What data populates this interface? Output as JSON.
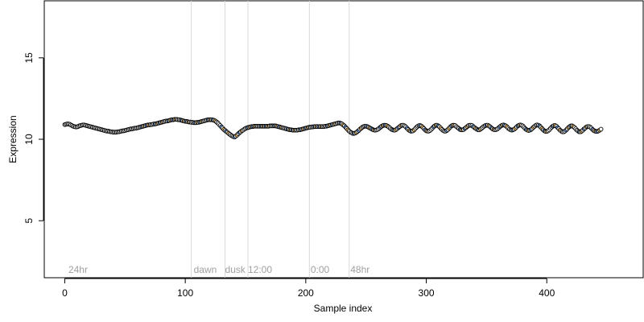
{
  "chart_data": {
    "type": "scatter",
    "title": "",
    "xlabel": "Sample index",
    "ylabel": "Expression",
    "xlim": [
      -17,
      480
    ],
    "ylim": [
      1.5,
      18.5
    ],
    "x_ticks": [
      0,
      100,
      200,
      300,
      400
    ],
    "y_ticks": [
      5,
      10,
      15
    ],
    "grid": false,
    "legend": "none",
    "colors": {
      "point_stroke": "#000000",
      "point_fill_neutral": "#ffffff",
      "point_fill_light": "#ffc866",
      "point_fill_dark": "#6699dd",
      "vline": "#d9d9d9",
      "annotation": "#a0a0a0"
    },
    "vlines": [
      105,
      133,
      152,
      203,
      236
    ],
    "annotations": [
      {
        "x": 3,
        "y": 2,
        "text": "24hr"
      },
      {
        "x": 107,
        "y": 2,
        "text": "dawn"
      },
      {
        "x": 133,
        "y": 2,
        "text": "dusk"
      },
      {
        "x": 152,
        "y": 2,
        "text": "12:00"
      },
      {
        "x": 204,
        "y": 2,
        "text": "0:00"
      },
      {
        "x": 237,
        "y": 2,
        "text": "48hr"
      }
    ],
    "series": [
      {
        "values": [
          10.9,
          10.92,
          10.94,
          10.94,
          10.92,
          10.88,
          10.84,
          10.8,
          10.78,
          10.76,
          10.76,
          10.78,
          10.82,
          10.84,
          10.86,
          10.88,
          10.88,
          10.86,
          10.84,
          10.82,
          10.8,
          10.78,
          10.76,
          10.74,
          10.72,
          10.7,
          10.68,
          10.66,
          10.64,
          10.62,
          10.6,
          10.58,
          10.56,
          10.54,
          10.52,
          10.5,
          10.5,
          10.48,
          10.46,
          10.46,
          10.44,
          10.44,
          10.44,
          10.44,
          10.46,
          10.46,
          10.48,
          10.5,
          10.52,
          10.52,
          10.54,
          10.56,
          10.58,
          10.6,
          10.62,
          10.64,
          10.64,
          10.66,
          10.68,
          10.68,
          10.7,
          10.72,
          10.74,
          10.76,
          10.78,
          10.8,
          10.82,
          10.84,
          10.86,
          10.88,
          10.88,
          10.9,
          10.9,
          10.92,
          10.94,
          10.94,
          10.96,
          10.98,
          11,
          11.02,
          11.04,
          11.06,
          11.08,
          11.1,
          11.12,
          11.12,
          11.14,
          11.16,
          11.18,
          11.2,
          11.2,
          11.22,
          11.22,
          11.22,
          11.2,
          11.2,
          11.18,
          11.16,
          11.14,
          11.12,
          11.1,
          11.1,
          11.08,
          11.06,
          11.06,
          11.04,
          11.04,
          11.02,
          11.02,
          11.02,
          11.04,
          11.04,
          11.06,
          11.08,
          11.1,
          11.12,
          11.14,
          11.16,
          11.18,
          11.2,
          11.2,
          11.2,
          11.2,
          11.18,
          11.16,
          11.12,
          11.06,
          11,
          10.92,
          10.84,
          10.76,
          10.68,
          10.6,
          10.54,
          10.48,
          10.42,
          10.36,
          10.3,
          10.24,
          10.2,
          10.16,
          10.14,
          10.2,
          10.26,
          10.34,
          10.4,
          10.46,
          10.52,
          10.56,
          10.62,
          10.66,
          10.7,
          10.72,
          10.74,
          10.76,
          10.78,
          10.78,
          10.8,
          10.8,
          10.8,
          10.8,
          10.8,
          10.8,
          10.8,
          10.8,
          10.8,
          10.8,
          10.8,
          10.8,
          10.8,
          10.82,
          10.82,
          10.82,
          10.82,
          10.82,
          10.82,
          10.8,
          10.78,
          10.76,
          10.74,
          10.72,
          10.7,
          10.68,
          10.66,
          10.64,
          10.62,
          10.6,
          10.58,
          10.58,
          10.56,
          10.56,
          10.56,
          10.56,
          10.56,
          10.58,
          10.58,
          10.6,
          10.62,
          10.64,
          10.66,
          10.68,
          10.7,
          10.72,
          10.74,
          10.74,
          10.76,
          10.76,
          10.78,
          10.78,
          10.78,
          10.78,
          10.78,
          10.78,
          10.78,
          10.78,
          10.78,
          10.8,
          10.8,
          10.82,
          10.84,
          10.86,
          10.88,
          10.9,
          10.92,
          10.94,
          10.96,
          10.98,
          11,
          11,
          10.98,
          10.94,
          10.88,
          10.82,
          10.74,
          10.66,
          10.58,
          10.5,
          10.44,
          10.4,
          10.36,
          10.36,
          10.38,
          10.42,
          10.48,
          10.54,
          10.62,
          10.68,
          10.74,
          10.78,
          10.8,
          10.8,
          10.78,
          10.74,
          10.7,
          10.66,
          10.62,
          10.58,
          10.56,
          10.56,
          10.58,
          10.62,
          10.68,
          10.74,
          10.8,
          10.84,
          10.86,
          10.86,
          10.84,
          10.8,
          10.74,
          10.68,
          10.62,
          10.58,
          10.56,
          10.56,
          10.6,
          10.66,
          10.72,
          10.78,
          10.84,
          10.86,
          10.86,
          10.82,
          10.76,
          10.68,
          10.6,
          10.54,
          10.5,
          10.5,
          10.52,
          10.58,
          10.66,
          10.74,
          10.8,
          10.84,
          10.84,
          10.8,
          10.74,
          10.66,
          10.58,
          10.52,
          10.5,
          10.5,
          10.54,
          10.6,
          10.68,
          10.76,
          10.82,
          10.86,
          10.86,
          10.82,
          10.76,
          10.68,
          10.6,
          10.54,
          10.5,
          10.5,
          10.54,
          10.6,
          10.68,
          10.76,
          10.82,
          10.86,
          10.86,
          10.84,
          10.78,
          10.72,
          10.66,
          10.6,
          10.58,
          10.58,
          10.6,
          10.66,
          10.72,
          10.78,
          10.84,
          10.86,
          10.86,
          10.84,
          10.78,
          10.72,
          10.66,
          10.62,
          10.58,
          10.58,
          10.62,
          10.68,
          10.74,
          10.8,
          10.84,
          10.86,
          10.86,
          10.82,
          10.76,
          10.7,
          10.64,
          10.6,
          10.58,
          10.6,
          10.64,
          10.7,
          10.76,
          10.82,
          10.86,
          10.88,
          10.86,
          10.82,
          10.76,
          10.68,
          10.62,
          10.58,
          10.56,
          10.58,
          10.62,
          10.68,
          10.76,
          10.82,
          10.86,
          10.88,
          10.86,
          10.82,
          10.74,
          10.66,
          10.6,
          10.56,
          10.54,
          10.56,
          10.6,
          10.66,
          10.74,
          10.8,
          10.86,
          10.88,
          10.86,
          10.82,
          10.74,
          10.66,
          10.58,
          10.52,
          10.48,
          10.48,
          10.52,
          10.58,
          10.66,
          10.74,
          10.8,
          10.84,
          10.84,
          10.8,
          10.72,
          10.64,
          10.56,
          10.5,
          10.46,
          10.46,
          10.5,
          10.56,
          10.64,
          10.72,
          10.78,
          10.82,
          10.82,
          10.78,
          10.72,
          10.64,
          10.56,
          10.5,
          10.46,
          10.46,
          10.5,
          10.56,
          10.64,
          10.7,
          10.76,
          10.78,
          10.78,
          10.74,
          10.68,
          10.6,
          10.54,
          10.5,
          10.48,
          10.48,
          10.52,
          10.56,
          10.62
        ],
        "fill": []
      }
    ]
  }
}
